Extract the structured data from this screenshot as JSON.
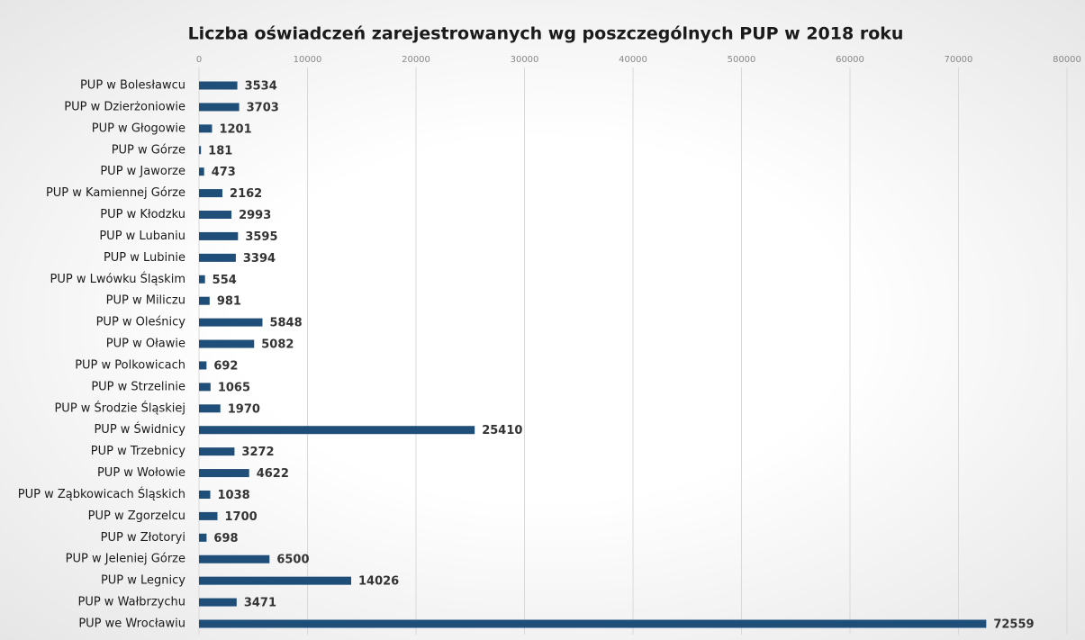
{
  "chart_data": {
    "type": "bar",
    "orientation": "horizontal",
    "title": "Liczba oświadczeń zarejestrowanych wg poszczególnych PUP w 2018 roku",
    "categories": [
      "PUP w Bolesławcu",
      "PUP w Dzierżoniowie",
      "PUP w Głogowie",
      "PUP w Górze",
      "PUP w Jaworze",
      "PUP w Kamiennej Górze",
      "PUP w Kłodzku",
      "PUP w Lubaniu",
      "PUP w Lubinie",
      "PUP w Lwówku Śląskim",
      "PUP w Miliczu",
      "PUP w Oleśnicy",
      "PUP w Oławie",
      "PUP w Polkowicach",
      "PUP w Strzelinie",
      "PUP w Środzie Śląskiej",
      "PUP w Świdnicy",
      "PUP w Trzebnicy",
      "PUP w Wołowie",
      "PUP w Ząbkowicach Śląskich",
      "PUP w Zgorzelcu",
      "PUP w Złotoryi",
      "PUP w Jeleniej Górze",
      "PUP w Legnicy",
      "PUP w Wałbrzychu",
      "PUP we Wrocławiu"
    ],
    "values": [
      3534,
      3703,
      1201,
      181,
      473,
      2162,
      2993,
      3595,
      3394,
      554,
      981,
      5848,
      5082,
      692,
      1065,
      1970,
      25410,
      3272,
      4622,
      1038,
      1700,
      698,
      6500,
      14026,
      3471,
      72559
    ],
    "color": "#1f4e79",
    "xlim": [
      0,
      80000
    ],
    "xticks": [
      0,
      10000,
      20000,
      30000,
      40000,
      50000,
      60000,
      70000,
      80000
    ],
    "grid": true
  }
}
